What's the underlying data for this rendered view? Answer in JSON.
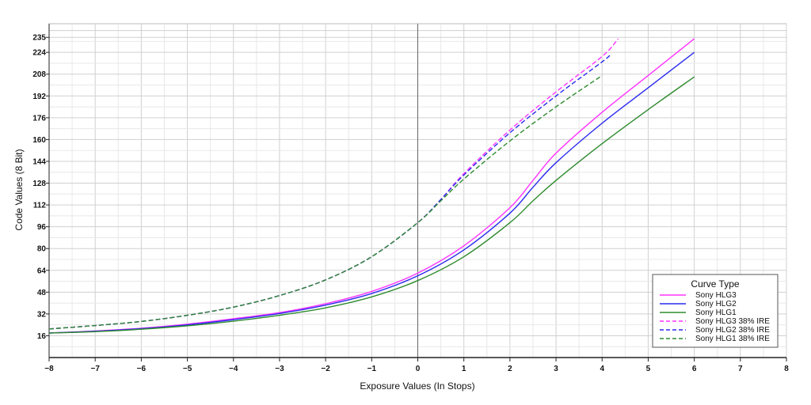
{
  "chart_data": {
    "type": "line",
    "title": "",
    "xlabel": "Exposure Values (In Stops)",
    "ylabel": "Code Values (8 Bit)",
    "xlim": [
      -8,
      8
    ],
    "ylim": [
      0,
      245
    ],
    "x_ticks": [
      -8,
      -7,
      -6,
      -5,
      -4,
      -3,
      -2,
      -1,
      0,
      1,
      2,
      3,
      4,
      5,
      6,
      7,
      8
    ],
    "x_tick_labels": [
      "−8",
      "−7",
      "−6",
      "−5",
      "−4",
      "−3",
      "−2",
      "−1",
      "0",
      "1",
      "2",
      "3",
      "4",
      "5",
      "6",
      "7",
      "8"
    ],
    "y_ticks": [
      16,
      32,
      48,
      64,
      80,
      96,
      112,
      128,
      144,
      160,
      176,
      192,
      208,
      224,
      235
    ],
    "y_tick_labels": [
      "16",
      "32",
      "48",
      "64",
      "80",
      "96",
      "112",
      "128",
      "144",
      "160",
      "176",
      "192",
      "208",
      "224",
      "235"
    ],
    "grid": true,
    "legend": {
      "title": "Curve Type",
      "placement": "bottom-right"
    },
    "series": [
      {
        "name": "Sony HLG3",
        "color": "#ff33ff",
        "style": "solid",
        "points": [
          [
            -8,
            18
          ],
          [
            -7,
            19.5
          ],
          [
            -6,
            21.5
          ],
          [
            -5,
            24.5
          ],
          [
            -4,
            28.5
          ],
          [
            -3,
            33
          ],
          [
            -2,
            39.5
          ],
          [
            -1,
            48.5
          ],
          [
            0,
            62
          ],
          [
            1,
            82
          ],
          [
            2,
            110
          ],
          [
            2.5,
            130
          ],
          [
            3,
            150
          ],
          [
            4,
            180
          ],
          [
            5,
            207
          ],
          [
            6,
            234
          ]
        ]
      },
      {
        "name": "Sony HLG2",
        "color": "#2a2aee",
        "style": "solid",
        "points": [
          [
            -8,
            18
          ],
          [
            -7,
            19.3
          ],
          [
            -6,
            21.2
          ],
          [
            -5,
            24
          ],
          [
            -4,
            27.8
          ],
          [
            -3,
            32.3
          ],
          [
            -2,
            38.5
          ],
          [
            -1,
            47
          ],
          [
            0,
            60
          ],
          [
            1,
            79
          ],
          [
            2,
            106
          ],
          [
            2.5,
            125
          ],
          [
            3,
            143
          ],
          [
            4,
            172
          ],
          [
            5,
            198
          ],
          [
            6,
            224
          ]
        ]
      },
      {
        "name": "Sony HLG1",
        "color": "#2e8b2e",
        "style": "solid",
        "points": [
          [
            -8,
            18
          ],
          [
            -7,
            19
          ],
          [
            -6,
            20.8
          ],
          [
            -5,
            23.3
          ],
          [
            -4,
            26.7
          ],
          [
            -3,
            31
          ],
          [
            -2,
            36.5
          ],
          [
            -1,
            44.5
          ],
          [
            0,
            56.5
          ],
          [
            1,
            74
          ],
          [
            2,
            99
          ],
          [
            2.5,
            115
          ],
          [
            3,
            130
          ],
          [
            4,
            157
          ],
          [
            5,
            182
          ],
          [
            6,
            206
          ]
        ]
      },
      {
        "name": "Sony HLG3 38% IRE",
        "color": "#ff33ff",
        "style": "dashed",
        "points": [
          [
            -8,
            21
          ],
          [
            -7,
            23.5
          ],
          [
            -6,
            26.5
          ],
          [
            -5,
            31
          ],
          [
            -4,
            37
          ],
          [
            -3,
            45.5
          ],
          [
            -2,
            57
          ],
          [
            -1,
            74
          ],
          [
            0,
            99
          ],
          [
            0.5,
            116
          ],
          [
            1,
            135
          ],
          [
            2,
            167
          ],
          [
            3,
            195
          ],
          [
            4,
            221
          ],
          [
            4.35,
            234
          ]
        ]
      },
      {
        "name": "Sony HLG2 38% IRE",
        "color": "#2a2aee",
        "style": "dashed",
        "points": [
          [
            -8,
            21
          ],
          [
            -7,
            23.5
          ],
          [
            -6,
            26.5
          ],
          [
            -5,
            31
          ],
          [
            -4,
            37
          ],
          [
            -3,
            45.5
          ],
          [
            -2,
            57
          ],
          [
            -1,
            74
          ],
          [
            0,
            99
          ],
          [
            0.5,
            116
          ],
          [
            1,
            134
          ],
          [
            2,
            165
          ],
          [
            3,
            192
          ],
          [
            4,
            217
          ],
          [
            4.2,
            223
          ]
        ]
      },
      {
        "name": "Sony HLG1 38% IRE",
        "color": "#2e8b2e",
        "style": "dashed",
        "points": [
          [
            -8,
            21
          ],
          [
            -7,
            23.5
          ],
          [
            -6,
            26.5
          ],
          [
            -5,
            31
          ],
          [
            -4,
            37
          ],
          [
            -3,
            45.5
          ],
          [
            -2,
            57
          ],
          [
            -1,
            74
          ],
          [
            0,
            99
          ],
          [
            0.5,
            115
          ],
          [
            1,
            131
          ],
          [
            2,
            159
          ],
          [
            3,
            184
          ],
          [
            4,
            207
          ]
        ]
      }
    ]
  }
}
